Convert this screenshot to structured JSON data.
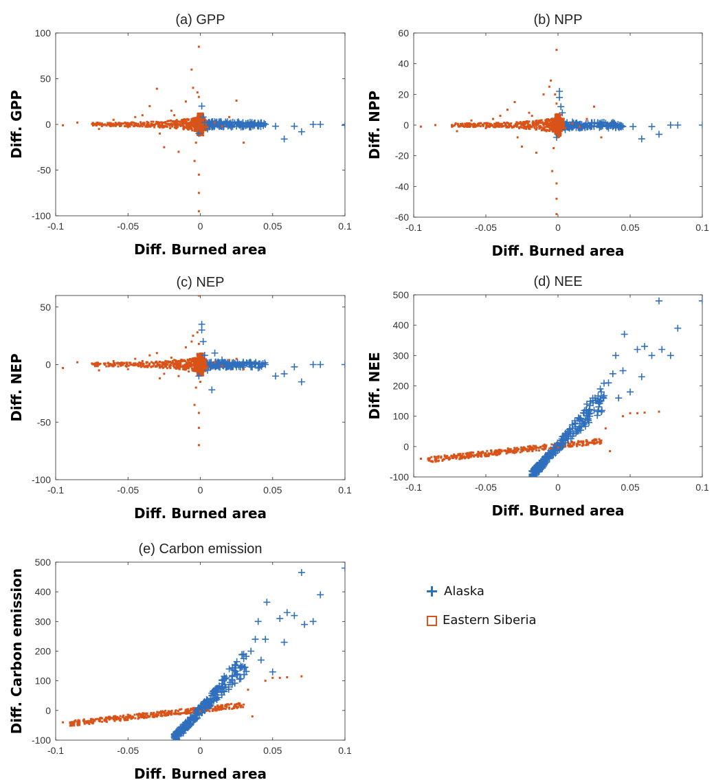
{
  "colors": {
    "alaska": "#2f6fbd",
    "siberia": "#d95319"
  },
  "legend": {
    "items": [
      {
        "label": "Alaska",
        "marker": "plus-icon",
        "color": "#2f6fbd"
      },
      {
        "label": "Eastern Siberia",
        "marker": "square-icon",
        "color": "#d95319"
      }
    ]
  },
  "chart_data": [
    {
      "type": "scatter",
      "title": "(a) GPP",
      "xlabel": "Diff. Burned area",
      "ylabel": "Diff. GPP",
      "xlim": [
        -0.1,
        0.1
      ],
      "ylim": [
        -100,
        100
      ],
      "xticks": [
        -0.1,
        -0.05,
        0,
        0.05,
        0.1
      ],
      "xticklabels": [
        "-0.1",
        "-0.05",
        "0",
        "0.05",
        "0.1"
      ],
      "yticks": [
        -100,
        -50,
        0,
        50,
        100
      ],
      "yticklabels": [
        "-100",
        "-50",
        "0",
        "50",
        "100"
      ],
      "series": [
        {
          "name": "Alaska",
          "marker": "plus",
          "x": [
            0.1,
            0.083,
            0.078,
            0.07,
            0.065,
            0.058,
            0.052,
            0.045,
            0.04,
            0.035,
            0.03,
            0.025,
            0.02,
            0.015,
            0.01,
            0.008,
            0.005,
            0.003,
            0.002,
            0.001,
            -0.001
          ],
          "y": [
            -1,
            0,
            0,
            -8,
            -2,
            -16,
            -2,
            0,
            -2,
            -3,
            -1,
            -2,
            -1,
            -2,
            3,
            -3,
            -5,
            2,
            8,
            20,
            -10
          ]
        },
        {
          "name": "Eastern Siberia",
          "marker": "square",
          "x": [
            -0.095,
            -0.085,
            -0.07,
            -0.06,
            -0.05,
            -0.045,
            -0.04,
            -0.035,
            -0.03,
            -0.028,
            -0.025,
            -0.02,
            -0.018,
            -0.015,
            -0.012,
            -0.01,
            -0.008,
            -0.006,
            -0.005,
            -0.004,
            -0.003,
            -0.002,
            -0.001,
            -0.001,
            -0.001,
            -0.001,
            -0.001,
            0.0,
            0.002,
            0.005,
            0.01,
            0.015,
            0.02,
            0.025,
            0.03
          ],
          "y": [
            -1,
            2,
            -5,
            5,
            -3,
            8,
            10,
            20,
            39,
            -10,
            -25,
            15,
            10,
            -30,
            5,
            25,
            -5,
            60,
            40,
            -40,
            -20,
            35,
            85,
            -95,
            -75,
            -55,
            30,
            -12,
            5,
            -3,
            2,
            -2,
            8,
            26,
            -20
          ]
        }
      ]
    },
    {
      "type": "scatter",
      "title": "(b) NPP",
      "xlabel": "Diff. Burned area",
      "ylabel": "Diff. NPP",
      "xlim": [
        -0.1,
        0.1
      ],
      "ylim": [
        -60,
        60
      ],
      "xticks": [
        -0.1,
        -0.05,
        0,
        0.05,
        0.1
      ],
      "xticklabels": [
        "-0.1",
        "-0.05",
        "0",
        "0.05",
        "0.1"
      ],
      "yticks": [
        -60,
        -40,
        -20,
        0,
        20,
        40,
        60
      ],
      "yticklabels": [
        "-60",
        "-40",
        "-20",
        "0",
        "20",
        "40",
        "60"
      ],
      "series": [
        {
          "name": "Alaska",
          "marker": "plus",
          "x": [
            0.1,
            0.083,
            0.078,
            0.07,
            0.065,
            0.058,
            0.052,
            0.045,
            0.04,
            0.035,
            0.03,
            0.025,
            0.02,
            0.015,
            0.01,
            0.008,
            0.005,
            0.003,
            0.002,
            0.001,
            0.001,
            -0.001
          ],
          "y": [
            0,
            0,
            0,
            -6,
            -1,
            -9,
            -1,
            -1,
            -1,
            -2,
            -1,
            -1,
            -1,
            -2,
            2,
            -2,
            -3,
            8,
            12,
            22,
            18,
            -8
          ]
        },
        {
          "name": "Eastern Siberia",
          "marker": "square",
          "x": [
            -0.095,
            -0.085,
            -0.07,
            -0.06,
            -0.05,
            -0.045,
            -0.04,
            -0.035,
            -0.03,
            -0.028,
            -0.025,
            -0.02,
            -0.018,
            -0.015,
            -0.012,
            -0.01,
            -0.008,
            -0.006,
            -0.005,
            -0.004,
            -0.003,
            -0.002,
            -0.001,
            -0.001,
            -0.001,
            -0.001,
            -0.001,
            0.0,
            0.002,
            0.005,
            0.01,
            0.015,
            0.02,
            0.025,
            0.03
          ],
          "y": [
            -1,
            0,
            -4,
            3,
            -2,
            4,
            6,
            10,
            15,
            -8,
            -14,
            8,
            6,
            -18,
            3,
            20,
            -4,
            25,
            29,
            -30,
            -15,
            20,
            49,
            -58,
            -48,
            -38,
            14,
            -8,
            3,
            -2,
            1,
            -1,
            4,
            12,
            -8
          ]
        }
      ]
    },
    {
      "type": "scatter",
      "title": "(c) NEP",
      "xlabel": "Diff. Burned area",
      "ylabel": "Diff. NEP",
      "xlim": [
        -0.1,
        0.1
      ],
      "ylim": [
        -100,
        60
      ],
      "xticks": [
        -0.1,
        -0.05,
        0,
        0.05,
        0.1
      ],
      "xticklabels": [
        "-0.1",
        "-0.05",
        "0",
        "0.05",
        "0.1"
      ],
      "yticks": [
        -100,
        -50,
        0,
        50
      ],
      "yticklabels": [
        "-100",
        "-50",
        "0",
        "50"
      ],
      "series": [
        {
          "name": "Alaska",
          "marker": "plus",
          "x": [
            0.1,
            0.083,
            0.078,
            0.07,
            0.065,
            0.058,
            0.052,
            0.045,
            0.04,
            0.035,
            0.03,
            0.025,
            0.02,
            0.015,
            0.01,
            0.008,
            0.005,
            0.003,
            0.002,
            0.001,
            0.001,
            -0.001
          ],
          "y": [
            0,
            0,
            0,
            -15,
            -2,
            -8,
            -10,
            0,
            -3,
            -2,
            -1,
            -2,
            -1,
            4,
            10,
            -22,
            -5,
            8,
            20,
            30,
            35,
            -10
          ]
        },
        {
          "name": "Eastern Siberia",
          "marker": "square",
          "x": [
            -0.095,
            -0.085,
            -0.07,
            -0.06,
            -0.05,
            -0.045,
            -0.04,
            -0.035,
            -0.03,
            -0.028,
            -0.025,
            -0.02,
            -0.018,
            -0.015,
            -0.012,
            -0.01,
            -0.008,
            -0.006,
            -0.005,
            -0.004,
            -0.003,
            -0.002,
            -0.001,
            -0.001,
            -0.001,
            -0.001,
            -0.001,
            0.0,
            0.002,
            0.005,
            0.01,
            0.015,
            0.02,
            0.025,
            0.03
          ],
          "y": [
            -3,
            2,
            -5,
            3,
            -4,
            5,
            3,
            8,
            10,
            -12,
            -8,
            6,
            4,
            -10,
            3,
            15,
            -6,
            20,
            25,
            -35,
            -20,
            28,
            60,
            -70,
            -55,
            -42,
            18,
            -15,
            3,
            -2,
            2,
            -1,
            4,
            5,
            -4
          ]
        }
      ]
    },
    {
      "type": "scatter",
      "title": "(d) NEE",
      "xlabel": "Diff. Burned area",
      "ylabel": "Diff. NEE",
      "xlim": [
        -0.1,
        0.1
      ],
      "ylim": [
        -100,
        500
      ],
      "xticks": [
        -0.1,
        -0.05,
        0,
        0.05,
        0.1
      ],
      "xticklabels": [
        "-0.1",
        "-0.05",
        "0",
        "0.05",
        "0.1"
      ],
      "yticks": [
        -100,
        0,
        100,
        200,
        300,
        400,
        500
      ],
      "yticklabels": [
        "-100",
        "0",
        "100",
        "200",
        "300",
        "400",
        "500"
      ],
      "series": [
        {
          "name": "Alaska",
          "marker": "plus",
          "x": [
            0.1,
            0.083,
            0.078,
            0.072,
            0.07,
            0.065,
            0.06,
            0.058,
            0.055,
            0.05,
            0.046,
            0.045,
            0.042,
            0.04,
            0.038,
            0.035,
            0.03,
            0.028,
            0.025,
            0.022,
            0.02,
            0.018,
            0.015,
            0.012,
            0.01,
            0.008,
            0.005,
            0.003,
            0.0,
            -0.003,
            -0.006,
            -0.01,
            -0.013,
            -0.016,
            -0.018
          ],
          "y": [
            480,
            390,
            300,
            320,
            480,
            300,
            330,
            230,
            320,
            180,
            370,
            250,
            160,
            300,
            240,
            210,
            180,
            150,
            120,
            100,
            140,
            110,
            90,
            75,
            60,
            50,
            35,
            20,
            5,
            -10,
            -25,
            -40,
            -55,
            -70,
            -80
          ]
        },
        {
          "name": "Eastern Siberia",
          "marker": "square",
          "x": [
            -0.095,
            -0.09,
            -0.085,
            -0.08,
            -0.075,
            -0.07,
            -0.065,
            -0.06,
            -0.055,
            -0.05,
            -0.045,
            -0.04,
            -0.035,
            -0.03,
            -0.025,
            -0.02,
            -0.015,
            -0.01,
            -0.005,
            0.0,
            0.005,
            0.01,
            0.015,
            0.02,
            0.025,
            0.03,
            0.033,
            0.036,
            0.045,
            0.05,
            0.055,
            0.06,
            0.07
          ],
          "y": [
            -40,
            -42,
            -38,
            -44,
            -40,
            -35,
            -32,
            -30,
            -28,
            -25,
            -26,
            -22,
            -20,
            -18,
            -16,
            -14,
            -12,
            -10,
            -6,
            -3,
            0,
            4,
            6,
            10,
            14,
            20,
            60,
            -15,
            100,
            110,
            110,
            112,
            115
          ]
        }
      ]
    },
    {
      "type": "scatter",
      "title": "(e) Carbon emission",
      "xlabel": "Diff. Burned area",
      "ylabel": "Diff. Carbon emission",
      "xlim": [
        -0.1,
        0.1
      ],
      "ylim": [
        -100,
        500
      ],
      "xticks": [
        -0.1,
        -0.05,
        0,
        0.05,
        0.1
      ],
      "xticklabels": [
        "-0.1",
        "-0.05",
        "0",
        "0.05",
        "0.1"
      ],
      "yticks": [
        -100,
        0,
        100,
        200,
        300,
        400,
        500
      ],
      "yticklabels": [
        "-100",
        "0",
        "100",
        "200",
        "300",
        "400",
        "500"
      ],
      "series": [
        {
          "name": "Alaska",
          "marker": "plus",
          "x": [
            0.1,
            0.083,
            0.078,
            0.072,
            0.07,
            0.065,
            0.06,
            0.058,
            0.055,
            0.05,
            0.046,
            0.045,
            0.042,
            0.04,
            0.038,
            0.035,
            0.03,
            0.028,
            0.025,
            0.022,
            0.02,
            0.018,
            0.015,
            0.012,
            0.01,
            0.008,
            0.005,
            0.003,
            0.0,
            -0.003,
            -0.006,
            -0.01,
            -0.013,
            -0.016,
            -0.018
          ],
          "y": [
            480,
            390,
            300,
            290,
            465,
            320,
            330,
            230,
            310,
            130,
            365,
            240,
            170,
            300,
            240,
            200,
            190,
            150,
            120,
            100,
            140,
            110,
            90,
            75,
            60,
            50,
            35,
            20,
            5,
            -10,
            -25,
            -40,
            -55,
            -70,
            -80
          ]
        },
        {
          "name": "Eastern Siberia",
          "marker": "square",
          "x": [
            -0.095,
            -0.09,
            -0.085,
            -0.08,
            -0.075,
            -0.07,
            -0.065,
            -0.06,
            -0.055,
            -0.05,
            -0.045,
            -0.04,
            -0.035,
            -0.03,
            -0.025,
            -0.02,
            -0.015,
            -0.01,
            -0.005,
            0.0,
            0.005,
            0.01,
            0.015,
            0.02,
            0.025,
            0.03,
            0.033,
            0.036,
            0.045,
            0.05,
            0.055,
            0.06,
            0.07
          ],
          "y": [
            -40,
            -42,
            -38,
            -44,
            -40,
            -35,
            -32,
            -30,
            -28,
            -25,
            -26,
            -22,
            -20,
            -18,
            -16,
            -14,
            -12,
            -10,
            -6,
            -3,
            0,
            4,
            6,
            10,
            14,
            20,
            70,
            -20,
            100,
            110,
            110,
            112,
            115
          ]
        }
      ]
    }
  ]
}
